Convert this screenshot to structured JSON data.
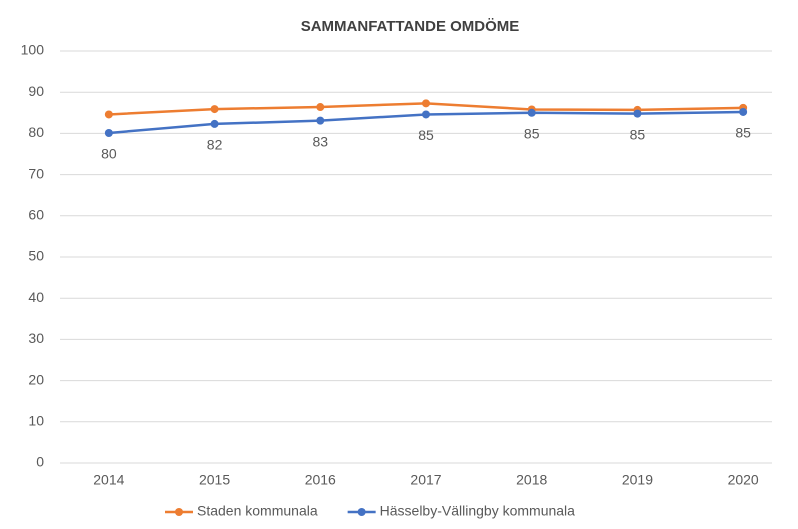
{
  "chart_data": {
    "type": "line",
    "title": "SAMMANFATTANDE OMDÖME",
    "categories": [
      "2014",
      "2015",
      "2016",
      "2017",
      "2018",
      "2019",
      "2020"
    ],
    "series": [
      {
        "name": "Staden kommunala",
        "color": "#ed7d31",
        "values": [
          84.6,
          85.9,
          86.4,
          87.3,
          85.8,
          85.7,
          86.2
        ]
      },
      {
        "name": "Hässelby-Vällingby kommunala",
        "color": "#4472c4",
        "values": [
          80.1,
          82.3,
          83.1,
          84.6,
          85.0,
          84.8,
          85.2
        ],
        "value_labels": [
          "80",
          "82",
          "83",
          "85",
          "85",
          "85",
          "85"
        ]
      }
    ],
    "ylim": [
      0,
      100
    ],
    "yticks": [
      0,
      10,
      20,
      30,
      40,
      50,
      60,
      70,
      80,
      90,
      100
    ],
    "grid": true,
    "legend": "bottom"
  }
}
